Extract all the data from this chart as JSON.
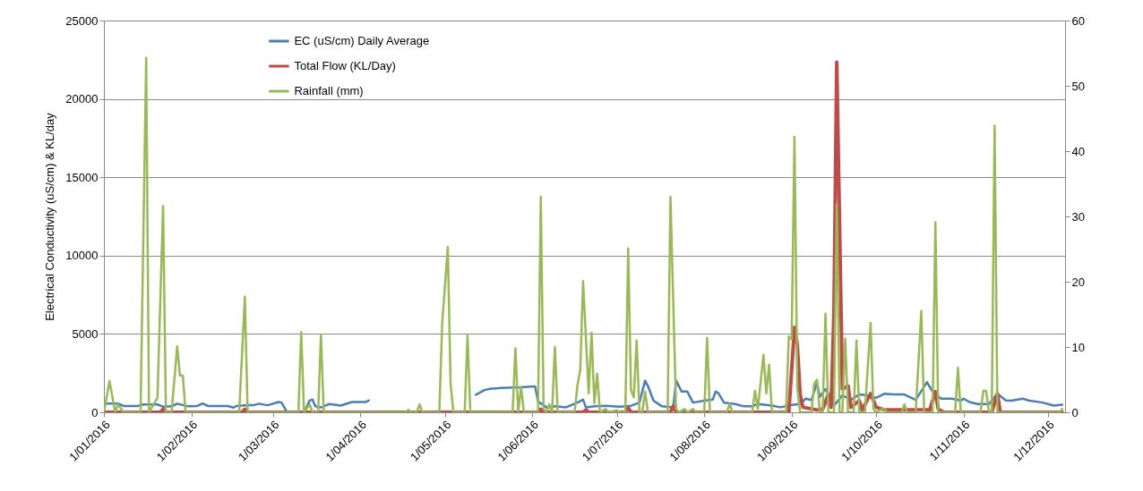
{
  "chart_data": {
    "type": "line",
    "ylabel": "Electrical Conductivity (uS/cm) & KL/day",
    "xlim": [
      "2016-01-01",
      "2016-12-07"
    ],
    "xticks": [
      {
        "value": "2016-01-01",
        "label": "1/01/2016"
      },
      {
        "value": "2016-02-01",
        "label": "1/02/2016"
      },
      {
        "value": "2016-03-01",
        "label": "1/03/2016"
      },
      {
        "value": "2016-04-01",
        "label": "1/04/2016"
      },
      {
        "value": "2016-05-01",
        "label": "1/05/2016"
      },
      {
        "value": "2016-06-01",
        "label": "1/06/2016"
      },
      {
        "value": "2016-07-01",
        "label": "1/07/2016"
      },
      {
        "value": "2016-08-01",
        "label": "1/08/2016"
      },
      {
        "value": "2016-09-01",
        "label": "1/09/2016"
      },
      {
        "value": "2016-10-01",
        "label": "1/10/2016"
      },
      {
        "value": "2016-11-01",
        "label": "1/11/2016"
      },
      {
        "value": "2016-12-01",
        "label": "1/12/2016"
      }
    ],
    "ylim": [
      0,
      25000
    ],
    "yticks": [
      0,
      5000,
      10000,
      15000,
      20000,
      25000
    ],
    "y2lim": [
      0,
      60
    ],
    "y2ticks": [
      0,
      10,
      20,
      30,
      40,
      50,
      60
    ],
    "grid": "y",
    "legend": "top left",
    "series": [
      {
        "name": "EC (uS/cm) Daily Average",
        "color": "#4a7ebb",
        "x": [
          "2016-01-02",
          "2016-01-06",
          "2016-01-08",
          "2016-01-13",
          "2016-01-15",
          "2016-01-20",
          "2016-01-22",
          "2016-01-25",
          "2016-01-27",
          "2016-01-31",
          "2016-02-03",
          "2016-02-05",
          "2016-02-07",
          "2016-02-14",
          "2016-02-16",
          "2016-02-17",
          "2016-02-21",
          "2016-02-23",
          "2016-02-25",
          "2016-02-28",
          "2016-03-03",
          "2016-03-04",
          "2016-03-06",
          "2016-03-12",
          "2016-03-14",
          "2016-03-15",
          "2016-03-16",
          "2016-03-18",
          "2016-03-21",
          "2016-03-25",
          "2016-03-29",
          "2016-04-03",
          "2016-04-04",
          "2016-04-20",
          "2016-05-12",
          "2016-05-15",
          "2016-05-17",
          "2016-05-21",
          "2016-05-28",
          "2016-06-02",
          "2016-06-03",
          "2016-06-06",
          "2016-06-09",
          "2016-06-13",
          "2016-06-17",
          "2016-06-19",
          "2016-06-20",
          "2016-06-23",
          "2016-06-27",
          "2016-07-02",
          "2016-07-06",
          "2016-07-09",
          "2016-07-11",
          "2016-07-12",
          "2016-07-14",
          "2016-07-17",
          "2016-07-21",
          "2016-07-22",
          "2016-07-24",
          "2016-07-26",
          "2016-07-28",
          "2016-08-01",
          "2016-08-04",
          "2016-08-05",
          "2016-08-06",
          "2016-08-08",
          "2016-08-12",
          "2016-08-15",
          "2016-08-18",
          "2016-08-20",
          "2016-08-25",
          "2016-08-28",
          "2016-09-01",
          "2016-09-04",
          "2016-09-06",
          "2016-09-08",
          "2016-09-10",
          "2016-09-11",
          "2016-09-13",
          "2016-09-15",
          "2016-09-16",
          "2016-09-19",
          "2016-09-22",
          "2016-09-25",
          "2016-09-28",
          "2016-10-01",
          "2016-10-04",
          "2016-10-07",
          "2016-10-11",
          "2016-10-15",
          "2016-10-19",
          "2016-10-21",
          "2016-10-24",
          "2016-10-28",
          "2016-10-31",
          "2016-11-01",
          "2016-11-03",
          "2016-11-06",
          "2016-11-10",
          "2016-11-13",
          "2016-11-16",
          "2016-11-18",
          "2016-11-22",
          "2016-11-24",
          "2016-11-29",
          "2016-12-03",
          "2016-12-06"
        ],
        "values": [
          560,
          560,
          400,
          400,
          500,
          500,
          350,
          380,
          550,
          380,
          400,
          560,
          400,
          400,
          300,
          400,
          450,
          450,
          550,
          450,
          660,
          620,
          0,
          0,
          750,
          810,
          380,
          310,
          530,
          430,
          660,
          660,
          760,
          null,
          1120,
          1420,
          1500,
          1560,
          1600,
          1650,
          700,
          320,
          380,
          320,
          620,
          810,
          320,
          380,
          420,
          360,
          420,
          620,
          2020,
          1680,
          740,
          380,
          320,
          2020,
          1320,
          1320,
          620,
          740,
          810,
          1320,
          1220,
          620,
          530,
          380,
          380,
          530,
          430,
          320,
          470,
          530,
          870,
          790,
          1870,
          980,
          1480,
          870,
          430,
          1080,
          790,
          1140,
          1080,
          920,
          1190,
          1140,
          1140,
          790,
          1920,
          1320,
          870,
          870,
          740,
          870,
          660,
          530,
          530,
          1190,
          760,
          740,
          870,
          760,
          620,
          430,
          480
        ]
      },
      {
        "name": "Total Flow (KL/Day)",
        "color": "#be4b48",
        "x": [
          "2016-01-01",
          "2016-01-21",
          "2016-01-22",
          "2016-01-23",
          "2016-02-19",
          "2016-02-20",
          "2016-02-21",
          "2016-06-03",
          "2016-06-04",
          "2016-06-05",
          "2016-06-19",
          "2016-06-20",
          "2016-06-21",
          "2016-07-04",
          "2016-07-05",
          "2016-07-06",
          "2016-07-20",
          "2016-07-21",
          "2016-07-22",
          "2016-08-31",
          "2016-09-02",
          "2016-09-03",
          "2016-09-04",
          "2016-09-05",
          "2016-09-10",
          "2016-09-12",
          "2016-09-14",
          "2016-09-15",
          "2016-09-16",
          "2016-09-17",
          "2016-09-19",
          "2016-09-21",
          "2016-09-22",
          "2016-09-25",
          "2016-09-26",
          "2016-09-29",
          "2016-10-01",
          "2016-10-04",
          "2016-10-20",
          "2016-10-22",
          "2016-10-23",
          "2016-10-25",
          "2016-11-11",
          "2016-11-13",
          "2016-11-14",
          "2016-12-06"
        ],
        "values": [
          0,
          0,
          200,
          0,
          0,
          200,
          0,
          0,
          200,
          0,
          0,
          150,
          0,
          0,
          300,
          0,
          0,
          400,
          0,
          0,
          5420,
          4340,
          1140,
          320,
          150,
          200,
          1140,
          320,
          6300,
          22350,
          1480,
          1680,
          320,
          740,
          150,
          1190,
          320,
          150,
          150,
          1320,
          200,
          0,
          0,
          1190,
          0,
          0
        ]
      },
      {
        "name": "Rainfall (mm)",
        "color": "#98b954",
        "axis": "y2",
        "x": [
          "2016-01-01",
          "2016-01-03",
          "2016-01-05",
          "2016-01-06",
          "2016-01-08",
          "2016-01-14",
          "2016-01-16",
          "2016-01-17",
          "2016-01-20",
          "2016-01-22",
          "2016-01-23",
          "2016-01-25",
          "2016-01-27",
          "2016-01-28",
          "2016-01-29",
          "2016-01-30",
          "2016-02-18",
          "2016-02-20",
          "2016-02-21",
          "2016-03-10",
          "2016-03-11",
          "2016-03-12",
          "2016-03-14",
          "2016-03-15",
          "2016-03-17",
          "2016-03-18",
          "2016-03-19",
          "2016-04-17",
          "2016-04-18",
          "2016-04-19",
          "2016-04-21",
          "2016-04-22",
          "2016-04-23",
          "2016-04-29",
          "2016-04-30",
          "2016-05-02",
          "2016-05-03",
          "2016-05-04",
          "2016-05-08",
          "2016-05-09",
          "2016-05-10",
          "2016-05-25",
          "2016-05-26",
          "2016-05-27",
          "2016-05-28",
          "2016-05-29",
          "2016-06-03",
          "2016-06-04",
          "2016-06-05",
          "2016-06-06",
          "2016-06-07",
          "2016-06-08",
          "2016-06-09",
          "2016-06-10",
          "2016-06-16",
          "2016-06-17",
          "2016-06-18",
          "2016-06-19",
          "2016-06-21",
          "2016-06-22",
          "2016-06-23",
          "2016-06-24",
          "2016-06-25",
          "2016-06-27",
          "2016-06-28",
          "2016-07-01",
          "2016-07-02",
          "2016-07-04",
          "2016-07-05",
          "2016-07-06",
          "2016-07-07",
          "2016-07-08",
          "2016-07-09",
          "2016-07-10",
          "2016-07-11",
          "2016-07-12",
          "2016-07-19",
          "2016-07-20",
          "2016-07-22",
          "2016-07-23",
          "2016-07-25",
          "2016-07-26",
          "2016-07-28",
          "2016-07-29",
          "2016-08-01",
          "2016-08-02",
          "2016-08-03",
          "2016-08-09",
          "2016-08-10",
          "2016-08-11",
          "2016-08-18",
          "2016-08-19",
          "2016-08-20",
          "2016-08-22",
          "2016-08-23",
          "2016-08-24",
          "2016-08-25",
          "2016-08-30",
          "2016-08-31",
          "2016-09-01",
          "2016-09-02",
          "2016-09-03",
          "2016-09-04",
          "2016-09-08",
          "2016-09-09",
          "2016-09-10",
          "2016-09-11",
          "2016-09-12",
          "2016-09-13",
          "2016-09-14",
          "2016-09-16",
          "2016-09-17",
          "2016-09-18",
          "2016-09-19",
          "2016-09-20",
          "2016-09-21",
          "2016-09-23",
          "2016-09-24",
          "2016-09-25",
          "2016-09-27",
          "2016-09-29",
          "2016-09-30",
          "2016-10-01",
          "2016-10-03",
          "2016-10-04",
          "2016-10-05",
          "2016-10-10",
          "2016-10-11",
          "2016-10-12",
          "2016-10-15",
          "2016-10-17",
          "2016-10-18",
          "2016-10-21",
          "2016-10-22",
          "2016-10-23",
          "2016-10-29",
          "2016-10-30",
          "2016-10-31",
          "2016-11-07",
          "2016-11-08",
          "2016-11-09",
          "2016-11-10",
          "2016-11-11",
          "2016-11-12",
          "2016-11-13",
          "2016-12-05",
          "2016-12-06"
        ],
        "values": [
          0,
          4.8,
          0,
          1.2,
          0,
          0,
          54.3,
          0,
          2.2,
          31.6,
          0,
          0,
          10.1,
          5.6,
          5.6,
          0,
          0,
          17.7,
          0,
          0,
          12.3,
          0,
          1.2,
          0,
          0,
          11.9,
          0,
          0,
          0.4,
          0,
          0,
          1.2,
          0,
          0,
          13.5,
          25.3,
          4.4,
          0,
          0,
          11.8,
          0,
          0,
          9.8,
          0,
          3.9,
          0,
          0,
          33,
          0.5,
          0,
          1.2,
          0,
          10,
          0,
          0,
          4.1,
          6.5,
          20.1,
          2.9,
          12.2,
          1.4,
          5.9,
          0,
          0.5,
          0,
          0.3,
          0,
          0,
          25.1,
          3.4,
          2.3,
          11,
          0,
          0,
          3.2,
          0,
          0,
          33,
          0.5,
          0,
          0.5,
          0,
          0.5,
          0,
          0,
          11.4,
          0,
          0,
          1.3,
          0,
          0,
          3.3,
          0.5,
          8.8,
          2.9,
          7.3,
          0,
          0,
          11.6,
          11.2,
          42.2,
          3.7,
          0,
          0,
          4.4,
          5,
          0,
          0,
          15.1,
          0,
          0,
          31.9,
          0,
          0,
          11.3,
          0,
          0,
          11,
          0,
          0,
          13.7,
          0.5,
          0,
          0.5,
          0.5,
          0,
          0,
          1.2,
          0,
          0,
          15.5,
          0,
          0,
          29.1,
          0,
          0,
          6.8,
          0,
          0,
          3.3,
          3.3,
          0,
          0,
          43.9,
          0,
          0,
          0.5
        ]
      }
    ]
  }
}
